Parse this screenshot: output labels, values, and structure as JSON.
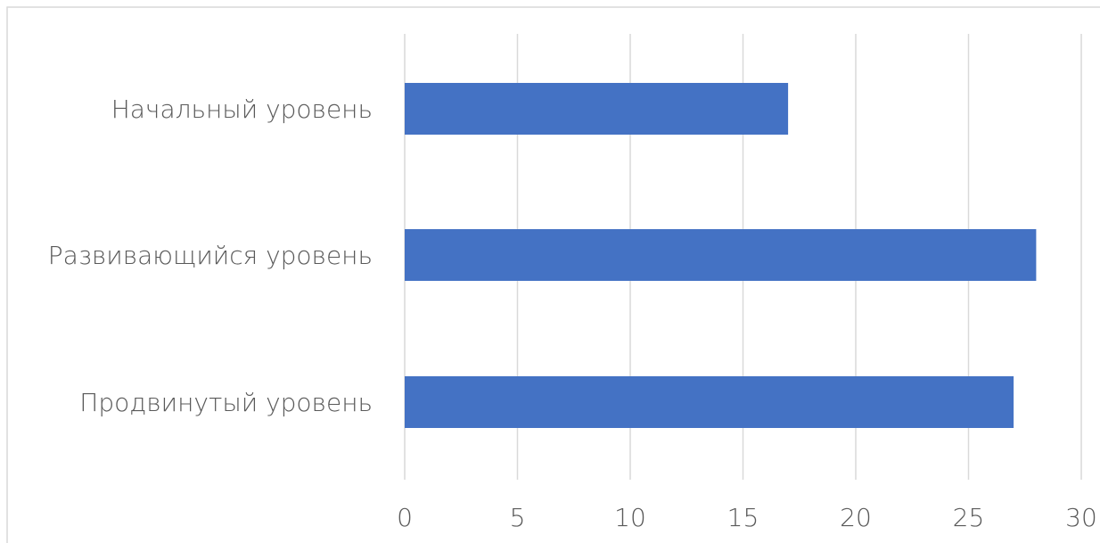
{
  "chart_data": {
    "type": "bar",
    "orientation": "horizontal",
    "categories": [
      "Начальный уровень",
      "Развивающийся уровень",
      "Продвинутый уровень"
    ],
    "values": [
      17,
      28,
      27
    ],
    "xlim": [
      0,
      30
    ],
    "xticks": [
      "0",
      "5",
      "10",
      "15",
      "20",
      "25",
      "30"
    ],
    "grid": true,
    "legend": "none",
    "bar_color": "#4472C4",
    "grid_color": "#D9D9D9",
    "border_color": "#D9D9D9",
    "label_color": "#595959"
  }
}
